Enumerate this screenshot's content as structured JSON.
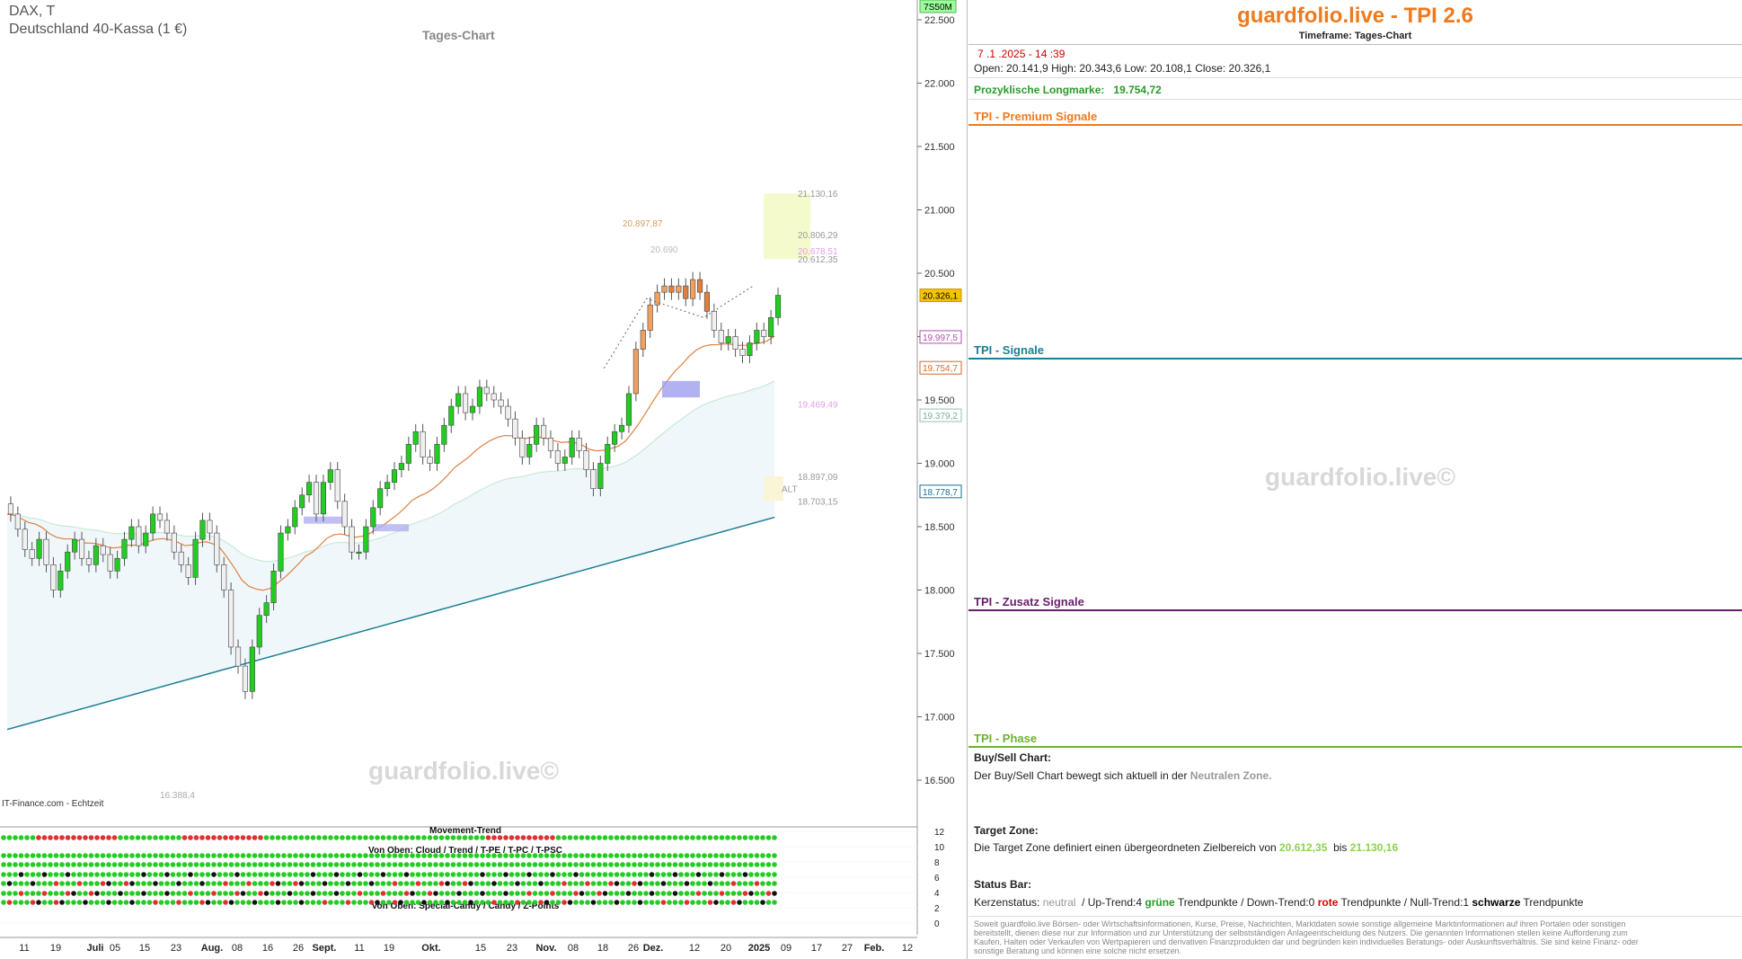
{
  "header": {
    "symbol": "DAX, T",
    "name": "Deutschland 40-Kassa (1 €)",
    "timeframe_label": "Tages-Chart",
    "source": "IT-Finance.com - Echtzeit",
    "watermark": "guardfolio.live©"
  },
  "price_axis": {
    "ticks": [
      "22.500",
      "22.000",
      "21.500",
      "21.000",
      "20.500",
      "20.000",
      "19.500",
      "19.000",
      "18.500",
      "18.000",
      "17.500",
      "17.000",
      "16.500"
    ],
    "tick_values": [
      22500,
      22000,
      21500,
      21000,
      20500,
      20000,
      19500,
      19000,
      18500,
      18000,
      17500,
      17000,
      16500
    ],
    "top_badge": "7S50M",
    "badges": [
      {
        "text": "20.326,1",
        "value": 20326,
        "bg": "#f5c400",
        "fg": "#000",
        "border": "#c49800"
      },
      {
        "text": "19.997,5",
        "value": 19997,
        "bg": "#fff",
        "fg": "#b04fb0",
        "border": "#b04fb0"
      },
      {
        "text": "19.754,7",
        "value": 19754,
        "bg": "#fff",
        "fg": "#d06a2a",
        "border": "#d06a2a"
      },
      {
        "text": "19.379,2",
        "value": 19379,
        "bg": "#fff",
        "fg": "#7a9",
        "border": "#9bb"
      },
      {
        "text": "18.778,7",
        "value": 18778,
        "bg": "#fff",
        "fg": "#1a6f8f",
        "border": "#1a6f8f"
      }
    ]
  },
  "chart_labels": [
    {
      "text": "21.130,16",
      "color": "#999"
    },
    {
      "text": "20.806,29",
      "color": "#999"
    },
    {
      "text": "20.678,51",
      "color": "#e0a0e0"
    },
    {
      "text": "20.612,35",
      "color": "#999"
    },
    {
      "text": "20.897,87",
      "color": "#d4a060"
    },
    {
      "text": "20.690",
      "color": "#bbb"
    },
    {
      "text": "19.469,49",
      "color": "#e0a0e0"
    },
    {
      "text": "18.897,09",
      "color": "#999"
    },
    {
      "text": "ALT",
      "color": "#999"
    },
    {
      "text": "18.703,15",
      "color": "#999"
    },
    {
      "text": "16.388,4",
      "color": "#aaa"
    }
  ],
  "time_axis": [
    "11",
    "19",
    "Juli",
    "05",
    "15",
    "23",
    "Aug.",
    "08",
    "16",
    "26",
    "Sept.",
    "11",
    "19",
    "Okt.",
    "15",
    "23",
    "Nov.",
    "08",
    "18",
    "26",
    "Dez.",
    "12",
    "20",
    "2025",
    "09",
    "17",
    "27",
    "Feb.",
    "12"
  ],
  "time_axis_bold": [
    "Juli",
    "Aug.",
    "Sept.",
    "Okt.",
    "Nov.",
    "Dez.",
    "2025",
    "Feb."
  ],
  "indicator": {
    "title1": "Movement-Trend",
    "title2": "Von Oben: Cloud / Trend / T-PE / T-PC / T-PSC",
    "title3": "Von Oben: Special-Candy / Candy / Z-Points",
    "scale": [
      "12",
      "10",
      "8",
      "6",
      "4",
      "2",
      "0"
    ]
  },
  "right_panel": {
    "title": "guardfolio.live - TPI 2.6",
    "subtitle": "Timeframe: Tages-Chart",
    "datetime": "7 .1 .2025  -  14 :39",
    "ohlc": "Open: 20.141,9     High:  20.343,6     Low:  20.108,1     Close: 20.326,1",
    "longmark_label": "Prozyklische Longmarke:",
    "longmark_value": "19.754,72",
    "premium": "TPI - Premium Signale",
    "signale": "TPI - Signale",
    "zusatz": "TPI - Zusatz Signale",
    "phase": "TPI - Phase",
    "watermark": "guardfolio.live©",
    "buysell_title": "Buy/Sell Chart:",
    "buysell_text": "Der Buy/Sell Chart bewegt sich aktuell in der",
    "buysell_zone": "Neutralen Zone.",
    "target_title": "Target Zone:",
    "target_text": "Die Target Zone definiert einen übergeordneten Zielbereich von",
    "target_from": "20.612,35",
    "target_bis": "bis",
    "target_to": "21.130,16",
    "status_title": "Status Bar:",
    "status_prefix": "Kerzenstatus:",
    "status_neutral": "neutral",
    "status_up": "/ Up-Trend:4",
    "status_gruene": "grüne",
    "status_tp1": "Trendpunkte  / Down-Trend:0",
    "status_rote": "rote",
    "status_tp2": "Trendpunkte / Null-Trend:1",
    "status_schwarze": "schwarze",
    "status_tp3": "Trendpunkte",
    "disclaimer": "Soweit guardfolio.live Börsen- oder Wirtschaftsinformationen, Kurse, Preise, Nachrichten, Marktdaten sowie sonstige allgemeine Marktinformationen auf ihren Portalen oder sonstigen bereitstellt, dienen diese nur zur Information und zur Unterstützung der selbstständigen Anlageentscheidung des Nutzers. Die genannten Informationen stellen keine Aufforderung zum Kaufen, Halten oder Verkaufen von Wertpapieren und derivativen Finanzprodukten dar und begründen kein individuelles Beratungs- oder Auskunftsverhältnis. Sie sind keine Finanz- oder sonstige Beratung und können eine solche nicht ersetzen."
  },
  "colors": {
    "orange": "#ee7a1d",
    "teal": "#1b7f95",
    "purple": "#6a1e6a",
    "green": "#6bb22e",
    "up": "#22cc22",
    "down": "#eeeeee"
  },
  "chart_data": {
    "type": "candlestick",
    "description_units": "index points",
    "ylim": [
      16350,
      22650
    ],
    "closes": [
      18600,
      18480,
      18320,
      18250,
      18400,
      18200,
      18000,
      18150,
      18300,
      18400,
      18250,
      18200,
      18350,
      18280,
      18150,
      18250,
      18400,
      18500,
      18350,
      18450,
      18600,
      18550,
      18450,
      18300,
      18200,
      18100,
      18400,
      18550,
      18450,
      18200,
      18000,
      17550,
      17400,
      17200,
      17550,
      17800,
      17900,
      18150,
      18450,
      18500,
      18650,
      18750,
      18850,
      18600,
      18850,
      18950,
      18700,
      18500,
      18300,
      18300,
      18500,
      18650,
      18800,
      18850,
      18950,
      19000,
      19150,
      19250,
      19050,
      19000,
      19150,
      19300,
      19450,
      19550,
      19400,
      19450,
      19600,
      19550,
      19500,
      19450,
      19350,
      19200,
      19050,
      19150,
      19300,
      19200,
      19100,
      19000,
      19050,
      19200,
      19100,
      18950,
      18800,
      19000,
      19150,
      19250,
      19300,
      19550,
      19900,
      20050,
      20250,
      20350,
      20400,
      20350,
      20400,
      20300,
      20450,
      20350,
      20200,
      20050,
      19950,
      20000,
      19900,
      19850,
      19950,
      20050,
      20000,
      20150,
      20326
    ],
    "target_zone": [
      20612.35,
      21130.16
    ],
    "signal_lines": {
      "alt_upper": 18897.09,
      "alt_lower": 18703.15,
      "longmark": 19754.72
    }
  }
}
